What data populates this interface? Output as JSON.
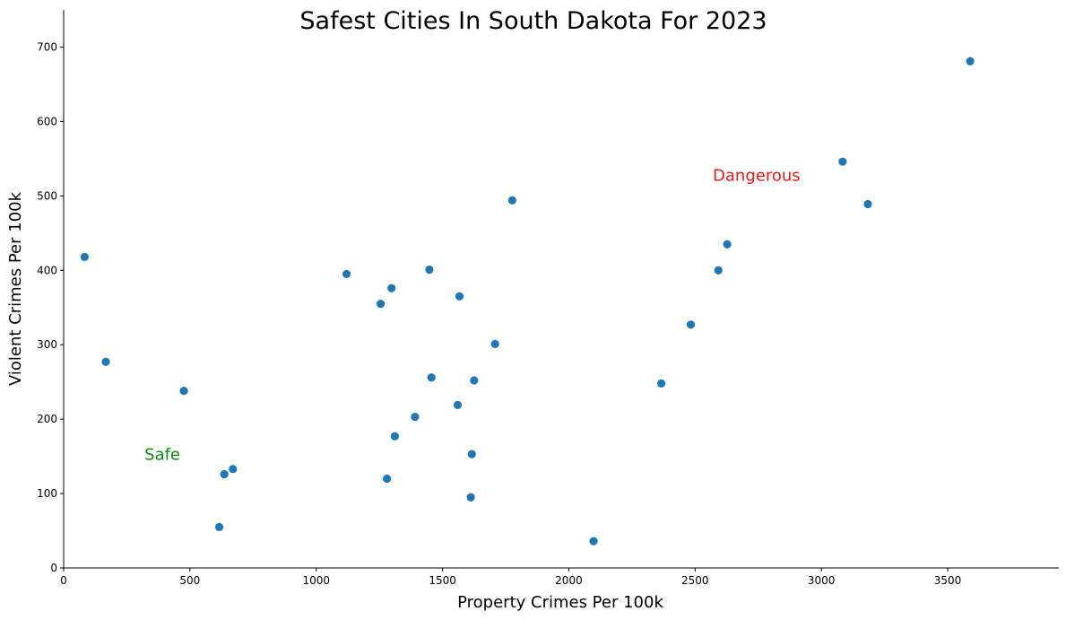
{
  "chart_data": {
    "type": "scatter",
    "title": "Safest Cities In South Dakota For 2023",
    "xlabel": "Property Crimes Per 100k",
    "ylabel": "Violent Crimes Per 100k",
    "xlim": [
      0,
      3940
    ],
    "ylim": [
      0,
      750
    ],
    "xticks": [
      0,
      500,
      1000,
      1500,
      2000,
      2500,
      3000,
      3500
    ],
    "yticks": [
      0,
      100,
      200,
      300,
      400,
      500,
      600,
      700
    ],
    "grid": false,
    "point_color": "#1f77b4",
    "points": [
      {
        "x": 83,
        "y": 418
      },
      {
        "x": 167,
        "y": 277
      },
      {
        "x": 476,
        "y": 238
      },
      {
        "x": 616,
        "y": 55
      },
      {
        "x": 636,
        "y": 126
      },
      {
        "x": 670,
        "y": 133
      },
      {
        "x": 1120,
        "y": 395
      },
      {
        "x": 1255,
        "y": 355
      },
      {
        "x": 1280,
        "y": 120
      },
      {
        "x": 1298,
        "y": 376
      },
      {
        "x": 1311,
        "y": 177
      },
      {
        "x": 1391,
        "y": 203
      },
      {
        "x": 1448,
        "y": 401
      },
      {
        "x": 1456,
        "y": 256
      },
      {
        "x": 1560,
        "y": 219
      },
      {
        "x": 1567,
        "y": 365
      },
      {
        "x": 1612,
        "y": 95
      },
      {
        "x": 1616,
        "y": 153
      },
      {
        "x": 1625,
        "y": 252
      },
      {
        "x": 1708,
        "y": 301
      },
      {
        "x": 1776,
        "y": 494
      },
      {
        "x": 2098,
        "y": 36
      },
      {
        "x": 2366,
        "y": 248
      },
      {
        "x": 2483,
        "y": 327
      },
      {
        "x": 2592,
        "y": 400
      },
      {
        "x": 2627,
        "y": 435
      },
      {
        "x": 3084,
        "y": 546
      },
      {
        "x": 3184,
        "y": 489
      },
      {
        "x": 3589,
        "y": 681
      }
    ],
    "annotations": [
      {
        "text": "Dangerous",
        "x": 2570,
        "y": 520,
        "color": "#e31a1c"
      },
      {
        "text": "Safe",
        "x": 320,
        "y": 145,
        "color": "#0a8a0a"
      }
    ]
  }
}
